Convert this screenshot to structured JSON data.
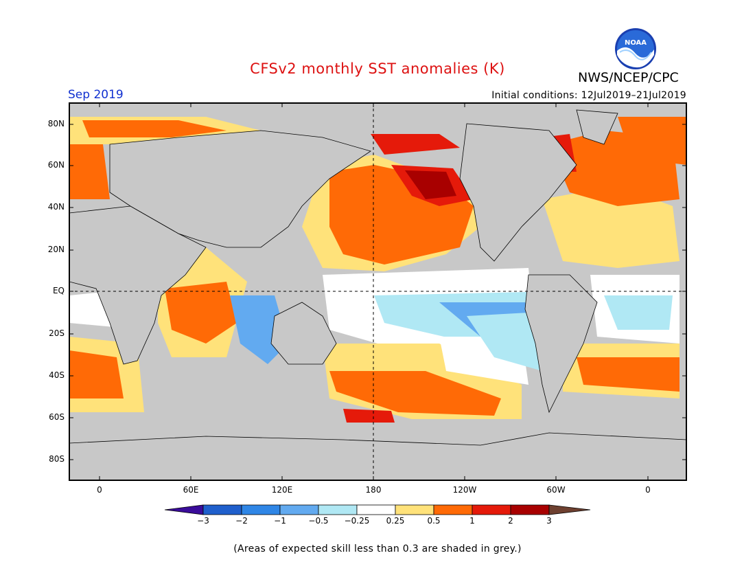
{
  "header": {
    "title": "CFSv2 monthly SST anomalies (K)",
    "agency": "NWS/NCEP/CPC",
    "month": "Sep 2019",
    "initial_conditions": "Initial conditions: 12Jul2019–21Jul2019",
    "logo_text": "NOAA"
  },
  "map": {
    "lat_ticks": [
      "80N",
      "60N",
      "40N",
      "20N",
      "EQ",
      "20S",
      "40S",
      "60S",
      "80S"
    ],
    "lon_ticks": [
      "0",
      "60E",
      "120E",
      "180",
      "120W",
      "60W",
      "0"
    ],
    "land_color": "#c8c8c8",
    "low_skill_color": "#c8c8c8"
  },
  "colorbar": {
    "labels": [
      "−3",
      "−2",
      "−1",
      "−0.5",
      "−0.25",
      "0.25",
      "0.5",
      "1",
      "2",
      "3"
    ],
    "colors": [
      "#3a0c9a",
      "#1f5fcc",
      "#2f86e6",
      "#62aaf0",
      "#b0e8f4",
      "#ffffff",
      "#ffe27a",
      "#ff6a06",
      "#e51a0a",
      "#a80000",
      "#6e4030"
    ]
  },
  "note": "(Areas of expected skill less than 0.3 are shaded in grey.)"
}
